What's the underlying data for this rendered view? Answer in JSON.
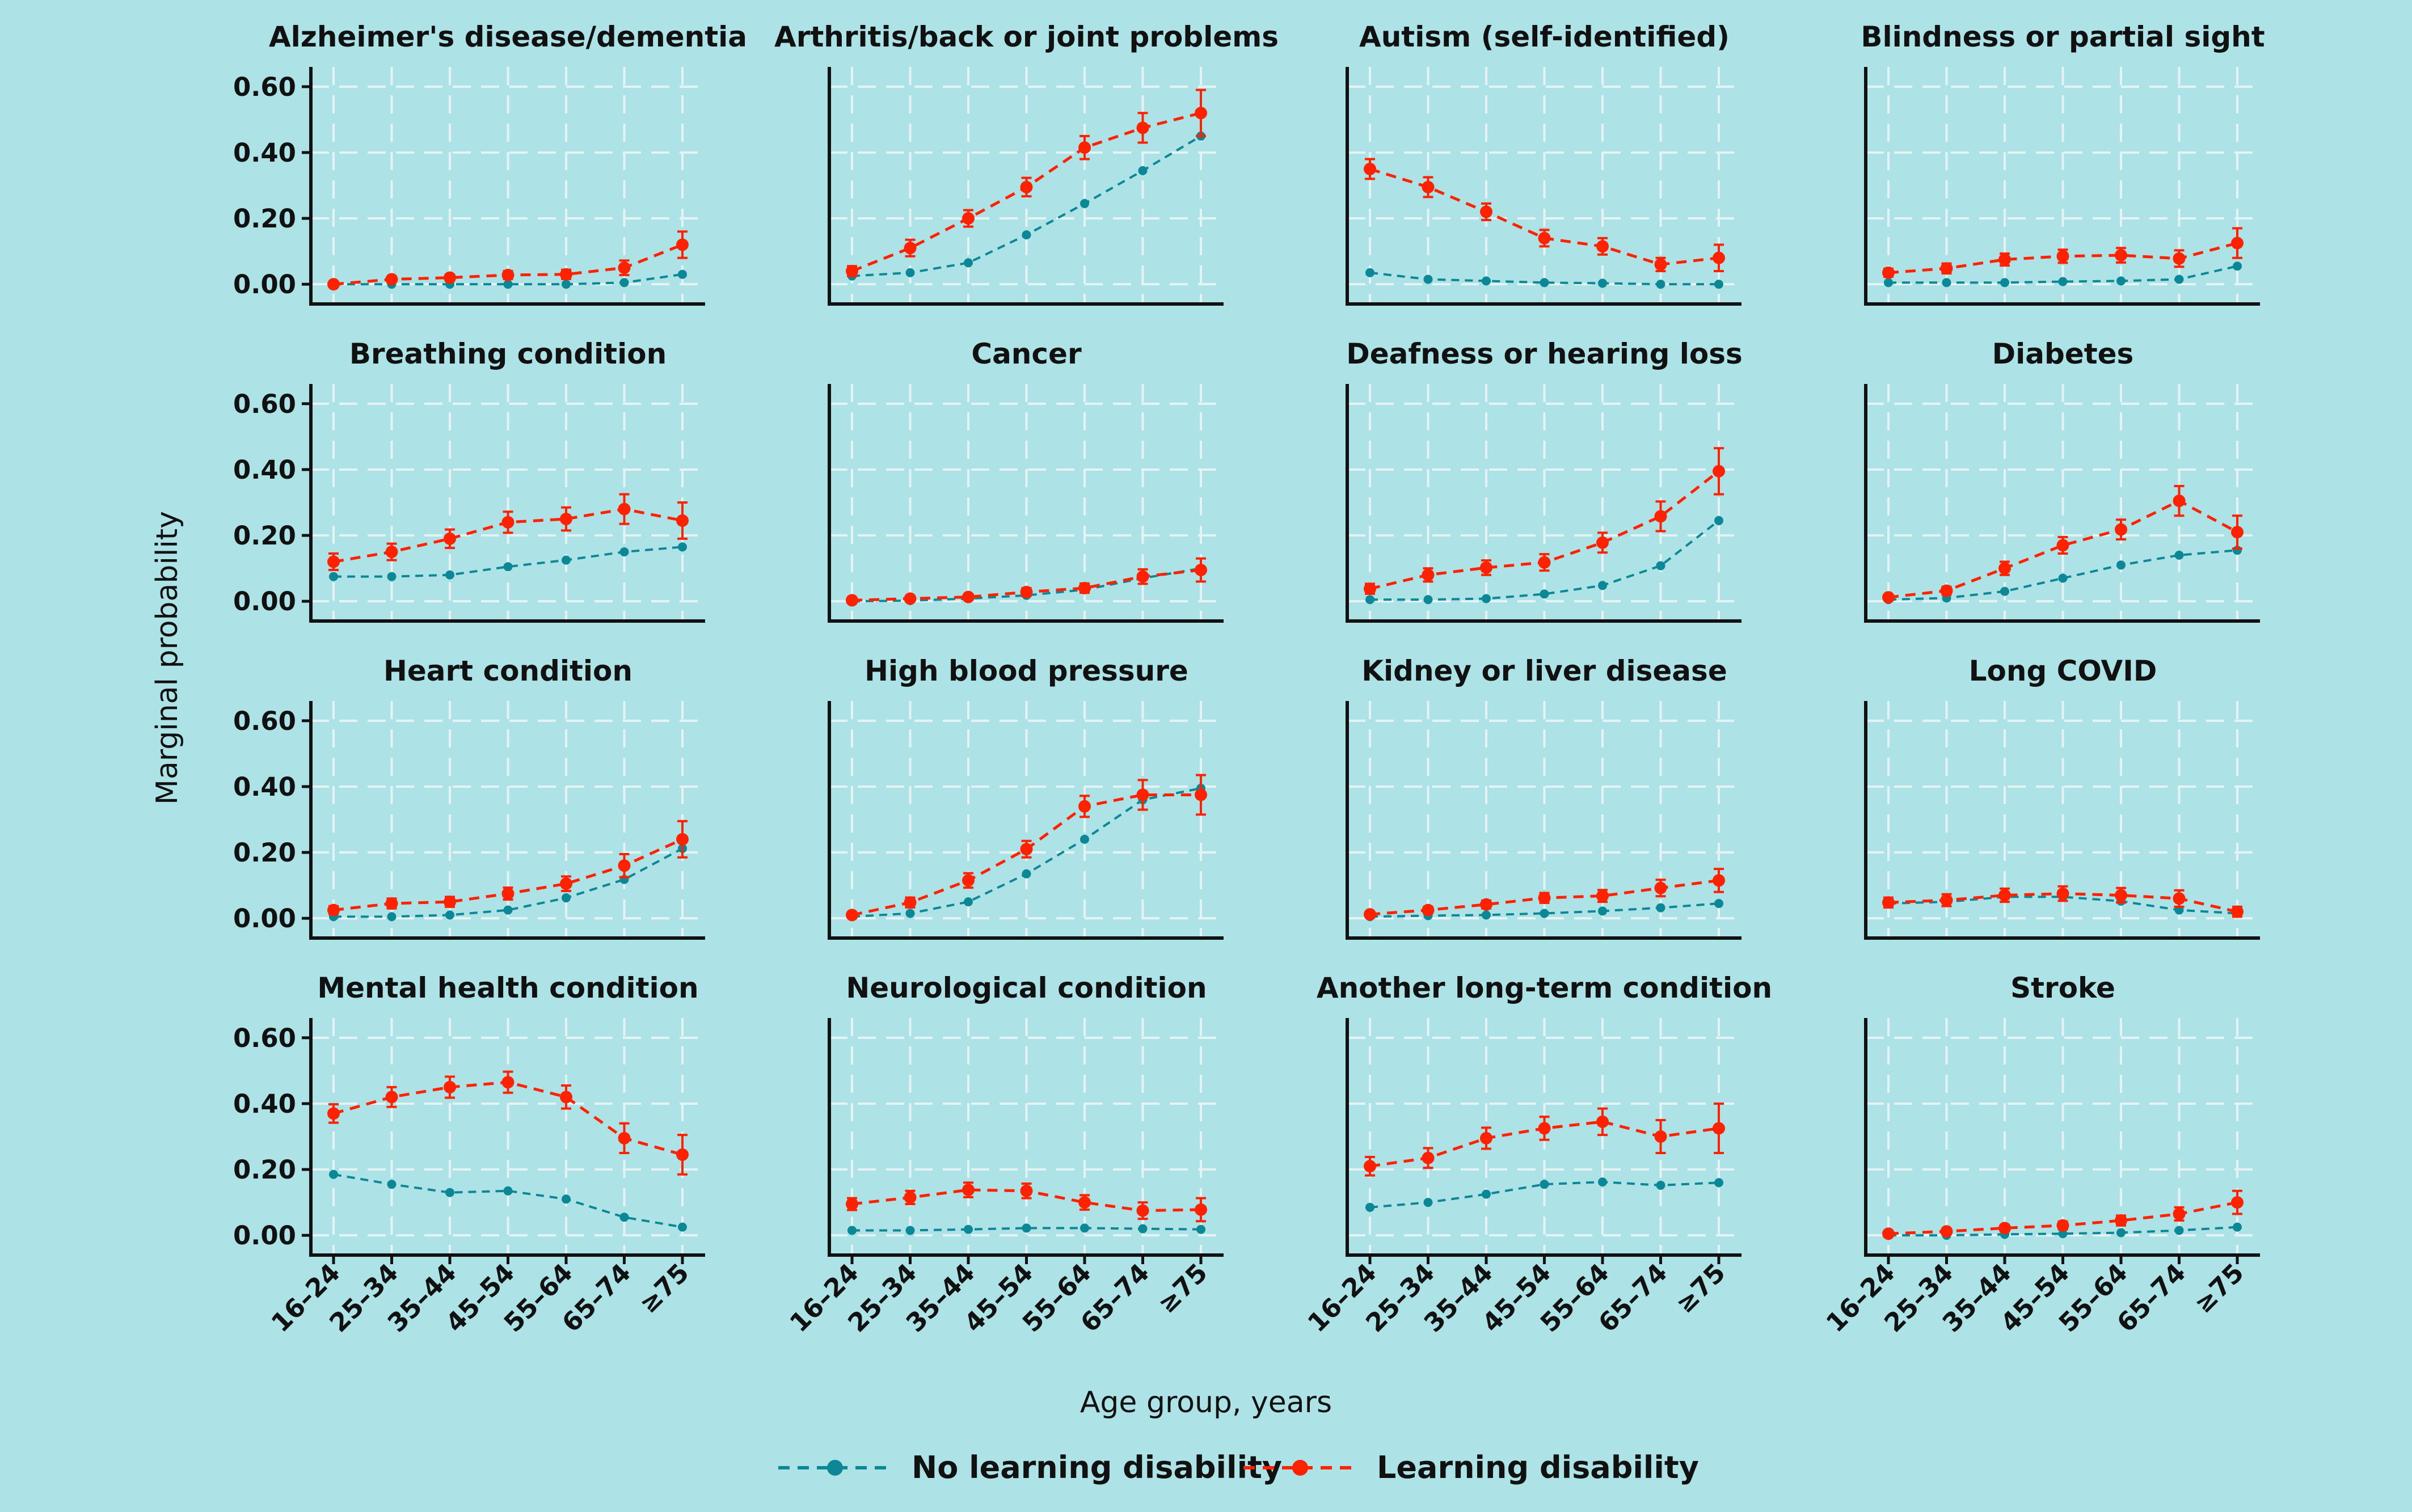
{
  "chart_data": {
    "type": "line",
    "xlabel": "Age group, years",
    "ylabel": "Marginal probability",
    "categories": [
      "16–24",
      "25–34",
      "35–44",
      "45–54",
      "55–64",
      "65–74",
      "≥75"
    ],
    "ylim": [
      -0.06,
      0.66
    ],
    "yticks": [
      0.0,
      0.2,
      0.4,
      0.6
    ],
    "ytick_labels": [
      "0.00",
      "0.20",
      "0.40",
      "0.60"
    ],
    "grid": true,
    "legend_position": "bottom",
    "legend": [
      "No learning disability",
      "Learning disability"
    ],
    "colors": {
      "no_ld": "#0c8796",
      "ld": "#ff2200",
      "grid": "#e6f3f4",
      "background": "#ade3e6",
      "axis": "#111111"
    },
    "panels": [
      {
        "title": "Alzheimer's disease/dementia",
        "no_ld": [
          0.0,
          0.0,
          0.0,
          0.0,
          0.0,
          0.005,
          0.03
        ],
        "ld": [
          0.0,
          0.015,
          0.02,
          0.028,
          0.03,
          0.05,
          0.12
        ],
        "ld_err": [
          0.006,
          0.008,
          0.009,
          0.012,
          0.014,
          0.022,
          0.04
        ]
      },
      {
        "title": "Arthritis/back or joint problems",
        "no_ld": [
          0.025,
          0.035,
          0.065,
          0.15,
          0.245,
          0.345,
          0.45
        ],
        "ld": [
          0.04,
          0.11,
          0.2,
          0.295,
          0.415,
          0.475,
          0.52
        ],
        "ld_err": [
          0.015,
          0.025,
          0.025,
          0.028,
          0.035,
          0.045,
          0.07
        ]
      },
      {
        "title": "Autism (self-identified)",
        "no_ld": [
          0.035,
          0.015,
          0.01,
          0.005,
          0.003,
          0.0,
          0.0
        ],
        "ld": [
          0.35,
          0.295,
          0.22,
          0.14,
          0.115,
          0.06,
          0.08
        ],
        "ld_err": [
          0.03,
          0.03,
          0.025,
          0.025,
          0.025,
          0.02,
          0.04
        ]
      },
      {
        "title": "Blindness or partial sight",
        "no_ld": [
          0.005,
          0.005,
          0.005,
          0.008,
          0.01,
          0.015,
          0.055
        ],
        "ld": [
          0.035,
          0.048,
          0.075,
          0.085,
          0.088,
          0.078,
          0.125
        ],
        "ld_err": [
          0.012,
          0.015,
          0.018,
          0.02,
          0.022,
          0.025,
          0.045
        ]
      },
      {
        "title": "Breathing condition",
        "no_ld": [
          0.075,
          0.075,
          0.08,
          0.105,
          0.125,
          0.15,
          0.165
        ],
        "ld": [
          0.12,
          0.15,
          0.19,
          0.24,
          0.25,
          0.28,
          0.245
        ],
        "ld_err": [
          0.025,
          0.025,
          0.028,
          0.032,
          0.035,
          0.045,
          0.055
        ]
      },
      {
        "title": "Cancer",
        "no_ld": [
          0.0,
          0.002,
          0.008,
          0.018,
          0.035,
          0.07,
          0.1
        ],
        "ld": [
          0.003,
          0.008,
          0.013,
          0.028,
          0.04,
          0.075,
          0.095
        ],
        "ld_err": [
          0.005,
          0.006,
          0.008,
          0.012,
          0.014,
          0.022,
          0.035
        ]
      },
      {
        "title": "Deafness or hearing loss",
        "no_ld": [
          0.005,
          0.005,
          0.008,
          0.022,
          0.048,
          0.108,
          0.245
        ],
        "ld": [
          0.038,
          0.08,
          0.102,
          0.118,
          0.178,
          0.258,
          0.395
        ],
        "ld_err": [
          0.015,
          0.02,
          0.022,
          0.025,
          0.03,
          0.045,
          0.07
        ]
      },
      {
        "title": "Diabetes",
        "no_ld": [
          0.005,
          0.01,
          0.03,
          0.07,
          0.11,
          0.14,
          0.155
        ],
        "ld": [
          0.012,
          0.032,
          0.1,
          0.17,
          0.218,
          0.305,
          0.21
        ],
        "ld_err": [
          0.008,
          0.012,
          0.02,
          0.025,
          0.03,
          0.045,
          0.05
        ]
      },
      {
        "title": "Heart condition",
        "no_ld": [
          0.005,
          0.005,
          0.01,
          0.025,
          0.062,
          0.118,
          0.212
        ],
        "ld": [
          0.025,
          0.045,
          0.05,
          0.075,
          0.105,
          0.16,
          0.24
        ],
        "ld_err": [
          0.012,
          0.015,
          0.015,
          0.018,
          0.022,
          0.035,
          0.055
        ]
      },
      {
        "title": "High blood pressure",
        "no_ld": [
          0.005,
          0.015,
          0.05,
          0.135,
          0.24,
          0.36,
          0.395
        ],
        "ld": [
          0.01,
          0.048,
          0.115,
          0.21,
          0.34,
          0.375,
          0.375
        ],
        "ld_err": [
          0.008,
          0.015,
          0.022,
          0.025,
          0.032,
          0.045,
          0.06
        ]
      },
      {
        "title": "Kidney or liver disease",
        "no_ld": [
          0.005,
          0.008,
          0.01,
          0.015,
          0.022,
          0.032,
          0.045
        ],
        "ld": [
          0.012,
          0.025,
          0.042,
          0.062,
          0.068,
          0.092,
          0.115
        ],
        "ld_err": [
          0.008,
          0.01,
          0.012,
          0.015,
          0.018,
          0.025,
          0.035
        ]
      },
      {
        "title": "Long COVID",
        "no_ld": [
          0.045,
          0.05,
          0.065,
          0.065,
          0.052,
          0.025,
          0.015
        ],
        "ld": [
          0.048,
          0.055,
          0.07,
          0.075,
          0.07,
          0.06,
          0.02
        ],
        "ld_err": [
          0.015,
          0.018,
          0.02,
          0.022,
          0.022,
          0.025,
          0.015
        ]
      },
      {
        "title": "Mental health condition",
        "no_ld": [
          0.185,
          0.155,
          0.13,
          0.135,
          0.11,
          0.055,
          0.025
        ],
        "ld": [
          0.37,
          0.42,
          0.45,
          0.465,
          0.42,
          0.295,
          0.245
        ],
        "ld_err": [
          0.028,
          0.03,
          0.032,
          0.032,
          0.035,
          0.045,
          0.06
        ]
      },
      {
        "title": "Neurological condition",
        "no_ld": [
          0.015,
          0.015,
          0.018,
          0.022,
          0.022,
          0.02,
          0.018
        ],
        "ld": [
          0.095,
          0.115,
          0.138,
          0.135,
          0.1,
          0.075,
          0.078
        ],
        "ld_err": [
          0.018,
          0.02,
          0.022,
          0.022,
          0.022,
          0.025,
          0.035
        ]
      },
      {
        "title": "Another long-term condition",
        "no_ld": [
          0.085,
          0.1,
          0.125,
          0.155,
          0.162,
          0.152,
          0.16
        ],
        "ld": [
          0.21,
          0.235,
          0.295,
          0.325,
          0.345,
          0.3,
          0.325
        ],
        "ld_err": [
          0.028,
          0.03,
          0.032,
          0.035,
          0.04,
          0.05,
          0.075
        ]
      },
      {
        "title": "Stroke",
        "no_ld": [
          0.0,
          0.0,
          0.003,
          0.005,
          0.008,
          0.015,
          0.025
        ],
        "ld": [
          0.005,
          0.012,
          0.022,
          0.03,
          0.045,
          0.065,
          0.1
        ],
        "ld_err": [
          0.005,
          0.008,
          0.01,
          0.012,
          0.015,
          0.02,
          0.035
        ]
      }
    ]
  }
}
